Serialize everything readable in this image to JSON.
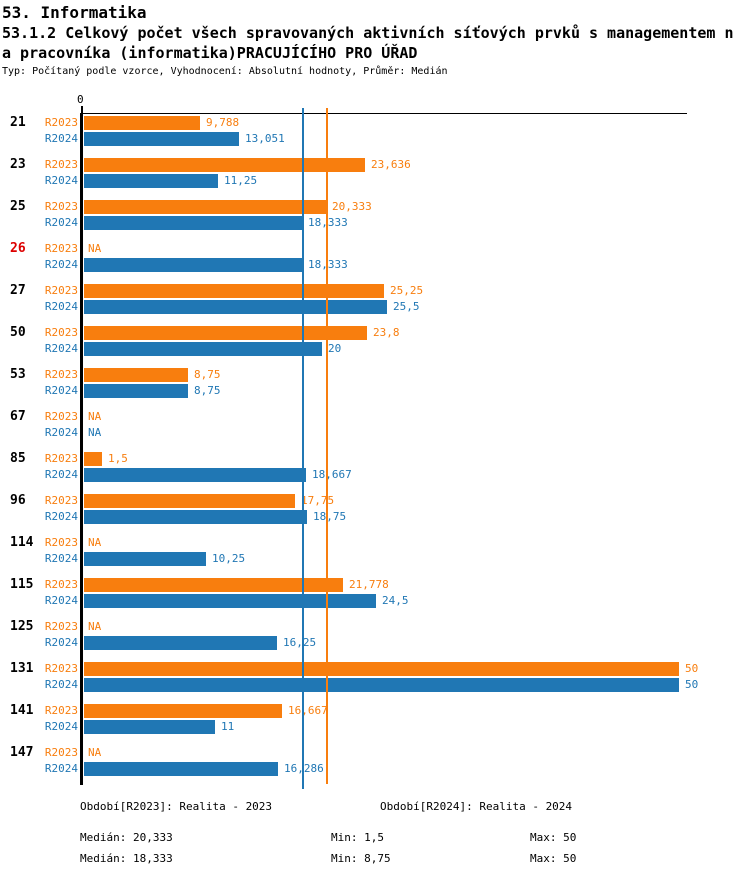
{
  "header": {
    "line1": "53. Informatika",
    "line2": "53.1.2 Celkový počet všech spravovaných aktivních síťových prvků s managementem n",
    "line3": "a pracovníka (informatika)PRACUJÍCÍHO PRO ÚŘAD",
    "meta": "Typ: Počítaný podle vzorce, Vyhodnocení: Absolutní hodnoty, Průměr: Medián"
  },
  "axis": {
    "zero_label": "0"
  },
  "colors": {
    "r2023": "#f87e0e",
    "r2024": "#2077b4",
    "highlight_category": "#dd0000",
    "axis": "#000000"
  },
  "chart_data": {
    "type": "bar",
    "orientation": "horizontal",
    "title": "53.1.2 Celkový počet všech spravovaných aktivních síťových prvků s managementem na pracovníka (informatika) PRACUJÍCÍHO PRO ÚŘAD",
    "xlim": [
      0,
      50.6
    ],
    "grid": false,
    "categories": [
      "21",
      "23",
      "25",
      "26",
      "27",
      "50",
      "53",
      "67",
      "85",
      "96",
      "114",
      "115",
      "125",
      "131",
      "141",
      "147"
    ],
    "highlighted_categories": [
      "26"
    ],
    "series": [
      {
        "name": "R2023",
        "legend": "Období[R2023]: Realita - 2023",
        "color": "#f87e0e",
        "values": [
          9.788,
          23.636,
          20.333,
          null,
          25.25,
          23.8,
          8.75,
          null,
          1.5,
          17.75,
          null,
          21.778,
          null,
          50,
          16.667,
          null
        ],
        "labels": [
          "9,788",
          "23,636",
          "20,333",
          "NA",
          "25,25",
          "23,8",
          "8,75",
          "NA",
          "1,5",
          "17,75",
          "NA",
          "21,778",
          "NA",
          "50",
          "16,667",
          "NA"
        ],
        "median": 20.333,
        "median_label": "Medián: 20,333",
        "min_label": "Min: 1,5",
        "max_label": "Max: 50"
      },
      {
        "name": "R2024",
        "legend": "Období[R2024]: Realita - 2024",
        "color": "#2077b4",
        "values": [
          13.051,
          11.25,
          18.333,
          18.333,
          25.5,
          20,
          8.75,
          null,
          18.667,
          18.75,
          10.25,
          24.5,
          16.25,
          50,
          11,
          16.286
        ],
        "labels": [
          "13,051",
          "11,25",
          "18,333",
          "18,333",
          "25,5",
          "20",
          "8,75",
          "NA",
          "18,667",
          "18,75",
          "10,25",
          "24,5",
          "16,25",
          "50",
          "11",
          "16,286"
        ],
        "median": 18.333,
        "median_label": "Medián: 18,333",
        "min_label": "Min: 8,75",
        "max_label": "Max: 50"
      }
    ]
  },
  "footer": {
    "legend": [
      {
        "label": "Období[R2023]: Realita - 2023"
      },
      {
        "label": "Období[R2024]: Realita - 2024"
      }
    ],
    "stats": [
      {
        "median": "Medián: 20,333",
        "min": "Min: 1,5",
        "max": "Max: 50"
      },
      {
        "median": "Medián: 18,333",
        "min": "Min: 8,75",
        "max": "Max: 50"
      }
    ]
  }
}
